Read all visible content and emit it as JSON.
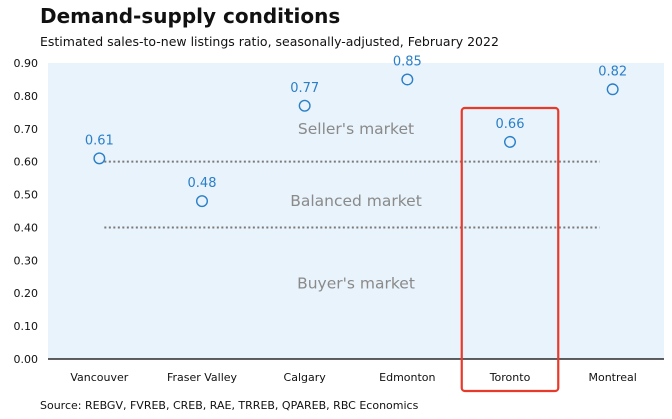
{
  "chart_data": {
    "type": "scatter",
    "title": "Demand-supply conditions",
    "subtitle": "Estimated sales-to-new listings ratio, seasonally-adjusted, February 2022",
    "source": "Source: REBGV, FVREB, CREB, RAE, TRREB, QPAREB, RBC Economics",
    "categories": [
      "Vancouver",
      "Fraser Valley",
      "Calgary",
      "Edmonton",
      "Toronto",
      "Montreal"
    ],
    "values": [
      0.61,
      0.48,
      0.77,
      0.85,
      0.66,
      0.82
    ],
    "data_labels": [
      "0.61",
      "0.48",
      "0.77",
      "0.85",
      "0.66",
      "0.82"
    ],
    "ylim": [
      0,
      0.9
    ],
    "yticks": [
      0.0,
      0.1,
      0.2,
      0.3,
      0.4,
      0.5,
      0.6,
      0.7,
      0.8,
      0.9
    ],
    "ytick_labels": [
      "0.00",
      "0.10",
      "0.20",
      "0.30",
      "0.40",
      "0.50",
      "0.60",
      "0.70",
      "0.80",
      "0.90"
    ],
    "thresholds": [
      0.6,
      0.4
    ],
    "zones": [
      {
        "label": "Seller's market",
        "value": 0.7
      },
      {
        "label": "Balanced market",
        "value": 0.48
      },
      {
        "label": "Buyer's market",
        "value": 0.23
      }
    ],
    "highlight_category": "Toronto",
    "colors": {
      "plot_background": "#e9f3fb",
      "marker": "#2a7fc9",
      "threshold": "#7a7a7a",
      "highlight": "#e8392b",
      "zone_text": "#8a8a8a"
    }
  }
}
